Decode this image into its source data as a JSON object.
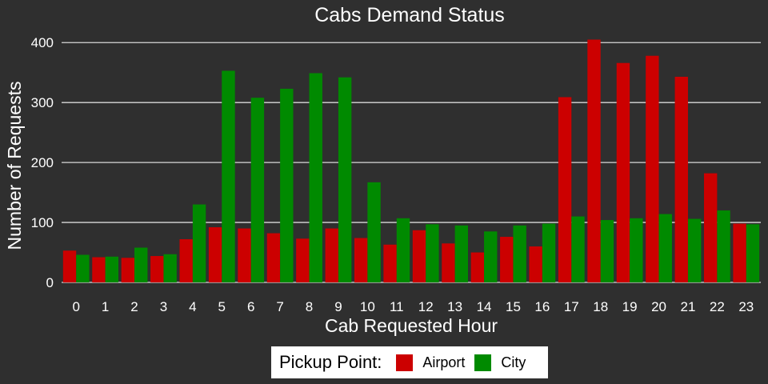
{
  "chart_data": {
    "type": "bar",
    "title": "Cabs Demand Status",
    "xlabel": "Cab Requested Hour",
    "ylabel": "Number of Requests",
    "categories": [
      "0",
      "1",
      "2",
      "3",
      "4",
      "5",
      "6",
      "7",
      "8",
      "9",
      "10",
      "11",
      "12",
      "13",
      "14",
      "15",
      "16",
      "17",
      "18",
      "19",
      "20",
      "21",
      "22",
      "23"
    ],
    "series": [
      {
        "name": "Airport",
        "color": "#cc0000",
        "values": [
          53,
          42,
          41,
          44,
          72,
          92,
          90,
          82,
          73,
          90,
          74,
          63,
          87,
          65,
          50,
          76,
          60,
          309,
          405,
          366,
          378,
          343,
          182,
          98
        ]
      },
      {
        "name": "City",
        "color": "#008a00",
        "values": [
          46,
          43,
          58,
          47,
          130,
          353,
          308,
          323,
          349,
          342,
          167,
          107,
          97,
          95,
          85,
          95,
          98,
          110,
          104,
          107,
          114,
          106,
          120,
          97
        ]
      }
    ],
    "yticks": [
      0,
      100,
      200,
      300,
      400
    ],
    "ylim": [
      0,
      415
    ],
    "grid": true,
    "legend": {
      "title": "Pickup Point:",
      "position": "bottom"
    }
  }
}
